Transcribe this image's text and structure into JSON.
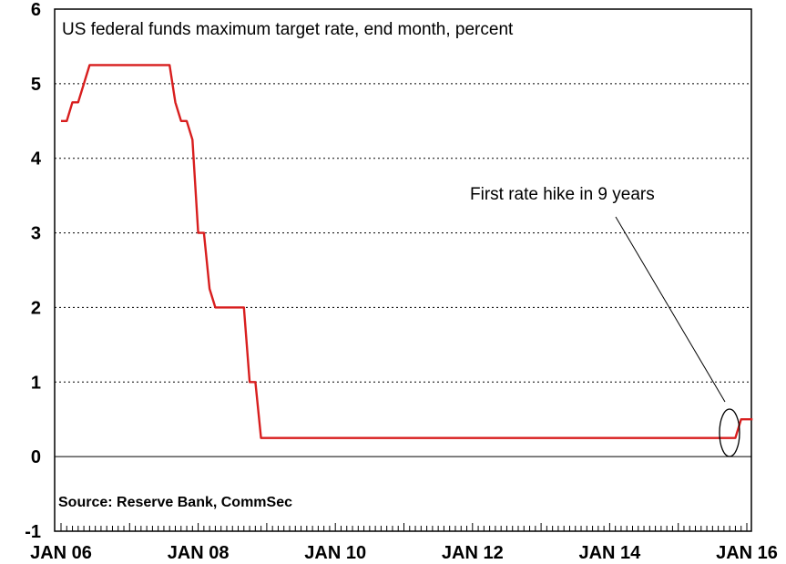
{
  "chart_data": {
    "type": "line",
    "title": "US federal funds maximum target rate, end month, percent",
    "source": "Source: Reserve Bank, CommSec",
    "annotation": "First rate hike in 9 years",
    "ylim": [
      -1,
      6
    ],
    "yticks": [
      "6",
      "5",
      "4",
      "3",
      "2",
      "1",
      "0",
      "-1"
    ],
    "xticks": [
      "JAN 06",
      "JAN 08",
      "JAN 10",
      "JAN 12",
      "JAN 14",
      "JAN 16"
    ],
    "grid": "horizontal dotted",
    "colors": {
      "series": "#d81e1e",
      "grid": "#000000"
    },
    "series": [
      {
        "points": [
          [
            "2006-01",
            4.5
          ],
          [
            "2006-02",
            4.5
          ],
          [
            "2006-03",
            4.75
          ],
          [
            "2006-04",
            4.75
          ],
          [
            "2006-05",
            5.0
          ],
          [
            "2006-06",
            5.25
          ],
          [
            "2006-07",
            5.25
          ],
          [
            "2006-08",
            5.25
          ],
          [
            "2006-09",
            5.25
          ],
          [
            "2006-10",
            5.25
          ],
          [
            "2006-11",
            5.25
          ],
          [
            "2006-12",
            5.25
          ],
          [
            "2007-01",
            5.25
          ],
          [
            "2007-02",
            5.25
          ],
          [
            "2007-03",
            5.25
          ],
          [
            "2007-04",
            5.25
          ],
          [
            "2007-05",
            5.25
          ],
          [
            "2007-06",
            5.25
          ],
          [
            "2007-07",
            5.25
          ],
          [
            "2007-08",
            5.25
          ],
          [
            "2007-09",
            4.75
          ],
          [
            "2007-10",
            4.5
          ],
          [
            "2007-11",
            4.5
          ],
          [
            "2007-12",
            4.25
          ],
          [
            "2008-01",
            3.0
          ],
          [
            "2008-02",
            3.0
          ],
          [
            "2008-03",
            2.25
          ],
          [
            "2008-04",
            2.0
          ],
          [
            "2008-05",
            2.0
          ],
          [
            "2008-06",
            2.0
          ],
          [
            "2008-07",
            2.0
          ],
          [
            "2008-08",
            2.0
          ],
          [
            "2008-09",
            2.0
          ],
          [
            "2008-10",
            1.0
          ],
          [
            "2008-11",
            1.0
          ],
          [
            "2008-12",
            0.25
          ],
          [
            "2015-11",
            0.25
          ],
          [
            "2015-12",
            0.5
          ],
          [
            "2016-01",
            0.5
          ],
          [
            "2016-02",
            0.5
          ]
        ]
      }
    ]
  }
}
